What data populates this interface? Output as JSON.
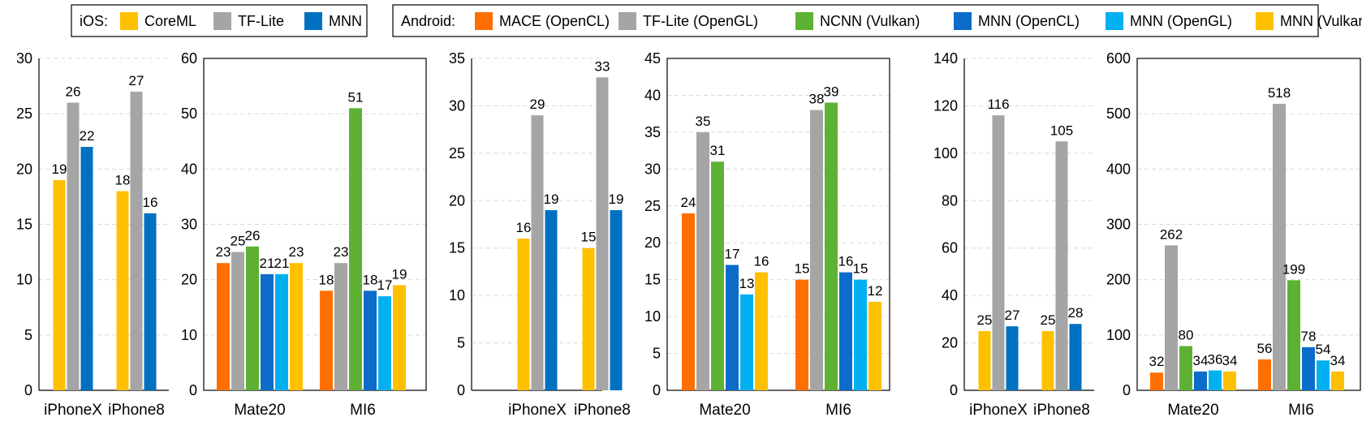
{
  "colors": {
    "CoreML": "#FFC000",
    "TF-Lite": "#A5A5A5",
    "MNN": "#0070C0",
    "MACE (OpenCL)": "#FF6F00",
    "TF-Lite (OpenGL)": "#A5A5A5",
    "NCNN (Vulkan)": "#5DB233",
    "MNN (OpenCL)": "#0B6CC9",
    "MNN (OpenGL)": "#00B0F0",
    "MNN (Vulkan)": "#FFC000"
  },
  "legend": {
    "ios_label": "iOS:",
    "ios_items": [
      "CoreML",
      "TF-Lite",
      "MNN"
    ],
    "android_label": "Android:",
    "android_items": [
      "MACE (OpenCL)",
      "TF-Lite (OpenGL)",
      "NCNN (Vulkan)",
      "MNN (OpenCL)",
      "MNN (OpenGL)",
      "MNN (Vulkan)"
    ]
  },
  "chart_data": [
    {
      "type": "bar",
      "categories": [
        "iPhoneX",
        "iPhone8"
      ],
      "ylim": [
        0,
        30
      ],
      "yticks": [
        0,
        5,
        10,
        15,
        20,
        25,
        30
      ],
      "grid": true,
      "series": [
        {
          "name": "CoreML",
          "values": [
            19,
            18
          ]
        },
        {
          "name": "TF-Lite",
          "values": [
            26,
            27
          ]
        },
        {
          "name": "MNN",
          "values": [
            22,
            16
          ]
        }
      ]
    },
    {
      "type": "bar",
      "categories": [
        "Mate20",
        "MI6"
      ],
      "ylim": [
        0,
        60
      ],
      "yticks": [
        0,
        10,
        20,
        30,
        40,
        50,
        60
      ],
      "grid": true,
      "series": [
        {
          "name": "MACE (OpenCL)",
          "values": [
            23,
            18
          ]
        },
        {
          "name": "TF-Lite (OpenGL)",
          "values": [
            25,
            23
          ]
        },
        {
          "name": "NCNN (Vulkan)",
          "values": [
            26,
            51
          ]
        },
        {
          "name": "MNN (OpenCL)",
          "values": [
            21,
            18
          ]
        },
        {
          "name": "MNN (OpenGL)",
          "values": [
            21,
            17
          ]
        },
        {
          "name": "MNN (Vulkan)",
          "values": [
            23,
            19
          ]
        }
      ]
    },
    {
      "type": "bar",
      "categories": [
        "iPhoneX",
        "iPhone8"
      ],
      "ylim": [
        0,
        35
      ],
      "yticks": [
        0,
        5,
        10,
        15,
        20,
        25,
        30,
        35
      ],
      "grid": true,
      "series": [
        {
          "name": "CoreML",
          "values": [
            16,
            15
          ]
        },
        {
          "name": "TF-Lite",
          "values": [
            29,
            33
          ]
        },
        {
          "name": "MNN",
          "values": [
            19,
            19
          ]
        }
      ]
    },
    {
      "type": "bar",
      "categories": [
        "Mate20",
        "MI6"
      ],
      "ylim": [
        0,
        45
      ],
      "yticks": [
        0,
        5,
        10,
        15,
        20,
        25,
        30,
        35,
        40,
        45
      ],
      "grid": true,
      "series": [
        {
          "name": "MACE (OpenCL)",
          "values": [
            24,
            15
          ]
        },
        {
          "name": "TF-Lite (OpenGL)",
          "values": [
            35,
            38
          ]
        },
        {
          "name": "NCNN (Vulkan)",
          "values": [
            31,
            39
          ]
        },
        {
          "name": "MNN (OpenCL)",
          "values": [
            17,
            16
          ]
        },
        {
          "name": "MNN (OpenGL)",
          "values": [
            13,
            15
          ]
        },
        {
          "name": "MNN (Vulkan)",
          "values": [
            16,
            12
          ]
        }
      ]
    },
    {
      "type": "bar",
      "categories": [
        "iPhoneX",
        "iPhone8"
      ],
      "ylim": [
        0,
        140
      ],
      "yticks": [
        0,
        20,
        40,
        60,
        80,
        100,
        120,
        140
      ],
      "grid": true,
      "series": [
        {
          "name": "CoreML",
          "values": [
            25,
            25
          ]
        },
        {
          "name": "TF-Lite",
          "values": [
            116,
            105
          ]
        },
        {
          "name": "MNN",
          "values": [
            27,
            28
          ]
        }
      ]
    },
    {
      "type": "bar",
      "categories": [
        "Mate20",
        "MI6"
      ],
      "ylim": [
        0,
        600
      ],
      "yticks": [
        0,
        100,
        200,
        300,
        400,
        500,
        600
      ],
      "grid": true,
      "series": [
        {
          "name": "MACE (OpenCL)",
          "values": [
            32,
            56
          ]
        },
        {
          "name": "TF-Lite (OpenGL)",
          "values": [
            262,
            518
          ]
        },
        {
          "name": "NCNN (Vulkan)",
          "values": [
            80,
            199
          ]
        },
        {
          "name": "MNN (OpenCL)",
          "values": [
            34,
            78
          ]
        },
        {
          "name": "MNN (OpenGL)",
          "values": [
            36,
            54
          ]
        },
        {
          "name": "MNN (Vulkan)",
          "values": [
            34,
            34
          ]
        }
      ]
    }
  ]
}
